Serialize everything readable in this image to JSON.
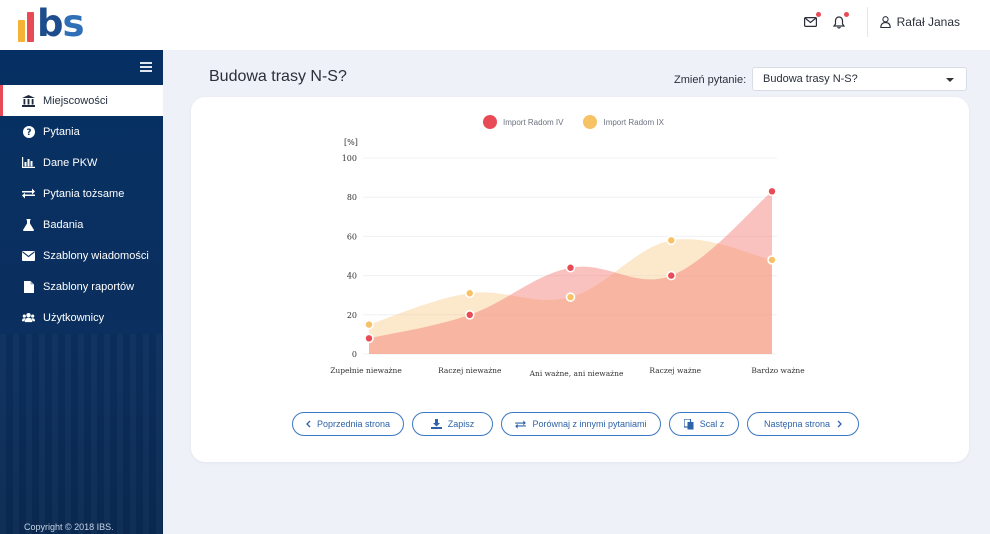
{
  "brand": {
    "logo_text": "ibs",
    "bar_colors": [
      "#f5b335",
      "#e84b55",
      "#f28b3a"
    ]
  },
  "header": {
    "user_name": "Rafał Janas",
    "icons": [
      "envelope-icon",
      "bell-icon",
      "user-icon"
    ]
  },
  "sidebar": {
    "items": [
      {
        "label": "Miejscowości",
        "icon": "building-icon",
        "active": true
      },
      {
        "label": "Pytania",
        "icon": "question-icon",
        "active": false
      },
      {
        "label": "Dane PKW",
        "icon": "bar-chart-icon",
        "active": false
      },
      {
        "label": "Pytania tożsame",
        "icon": "exchange-icon",
        "active": false
      },
      {
        "label": "Badania",
        "icon": "flask-icon",
        "active": false
      },
      {
        "label": "Szablony wiadomości",
        "icon": "envelope-icon",
        "active": false
      },
      {
        "label": "Szablony raportów",
        "icon": "file-icon",
        "active": false
      },
      {
        "label": "Użytkownicy",
        "icon": "users-icon",
        "active": false
      }
    ],
    "copyright": "Copyright © 2018 IBS."
  },
  "main": {
    "title": "Budowa trasy N-S?",
    "change_label": "Zmień pytanie:",
    "selected_question": "Budowa trasy N-S?"
  },
  "chart_data": {
    "type": "area",
    "title": "",
    "xlabel": "",
    "ylabel": "[%]",
    "ylim": [
      0,
      100
    ],
    "y_ticks": [
      0,
      20,
      40,
      60,
      80,
      100
    ],
    "grid": true,
    "legend_position": "top-center",
    "categories": [
      "Zupełnie nieważne",
      "Raczej nieważne",
      "Ani ważne, ani nieważne",
      "Raczej ważne",
      "Bardzo ważne"
    ],
    "series": [
      {
        "name": "Import Radom IV",
        "color": "#e84b55",
        "values": [
          8,
          20,
          44,
          40,
          83
        ]
      },
      {
        "name": "Import Radom IX",
        "color": "#f7c266",
        "values": [
          15,
          31,
          29,
          58,
          48
        ]
      }
    ]
  },
  "buttons": {
    "prev": "Poprzednia strona",
    "save": "Zapisz",
    "compare": "Porównaj z innymi pytaniami",
    "merge": "Scal z",
    "next": "Następna strona"
  }
}
